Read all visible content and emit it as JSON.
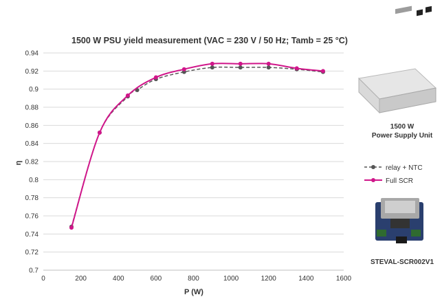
{
  "chart_data": {
    "type": "line",
    "title": "1500 W PSU yield measurement (VAC = 230 V / 50 Hz; Tamb = 25 °C)",
    "xlabel": "P (W)",
    "ylabel": "η",
    "xlim": [
      0,
      1600
    ],
    "ylim": [
      0.7,
      0.94
    ],
    "xticks": [
      "0",
      "200",
      "400",
      "600",
      "800",
      "1000",
      "1200",
      "1400",
      "1600"
    ],
    "yticks": [
      "0.7",
      "0.72",
      "0.74",
      "0.76",
      "0.78",
      "0.8",
      "0.82",
      "0.84",
      "0.86",
      "0.88",
      "0.9",
      "0.92",
      "0.94"
    ],
    "grid": "horizontal",
    "legend_position": "right",
    "series": [
      {
        "name": "relay + NTC",
        "color": "#555555",
        "style": "dashed",
        "x": [
          150,
          300,
          450,
          500,
          600,
          750,
          900,
          1050,
          1200,
          1350,
          1490
        ],
        "y": [
          0.748,
          0.852,
          0.892,
          0.899,
          0.911,
          0.919,
          0.924,
          0.924,
          0.924,
          0.922,
          0.919
        ]
      },
      {
        "name": "Full SCR",
        "color": "#d0168a",
        "style": "solid",
        "x": [
          150,
          300,
          450,
          600,
          750,
          900,
          1050,
          1200,
          1350,
          1490
        ],
        "y": [
          0.747,
          0.852,
          0.893,
          0.913,
          0.922,
          0.928,
          0.928,
          0.928,
          0.923,
          0.92
        ]
      }
    ]
  },
  "side": {
    "psu_label_line1": "1500 W",
    "psu_label_line2": "Power Supply Unit",
    "board_label": "STEVAL-SCR002V1"
  }
}
